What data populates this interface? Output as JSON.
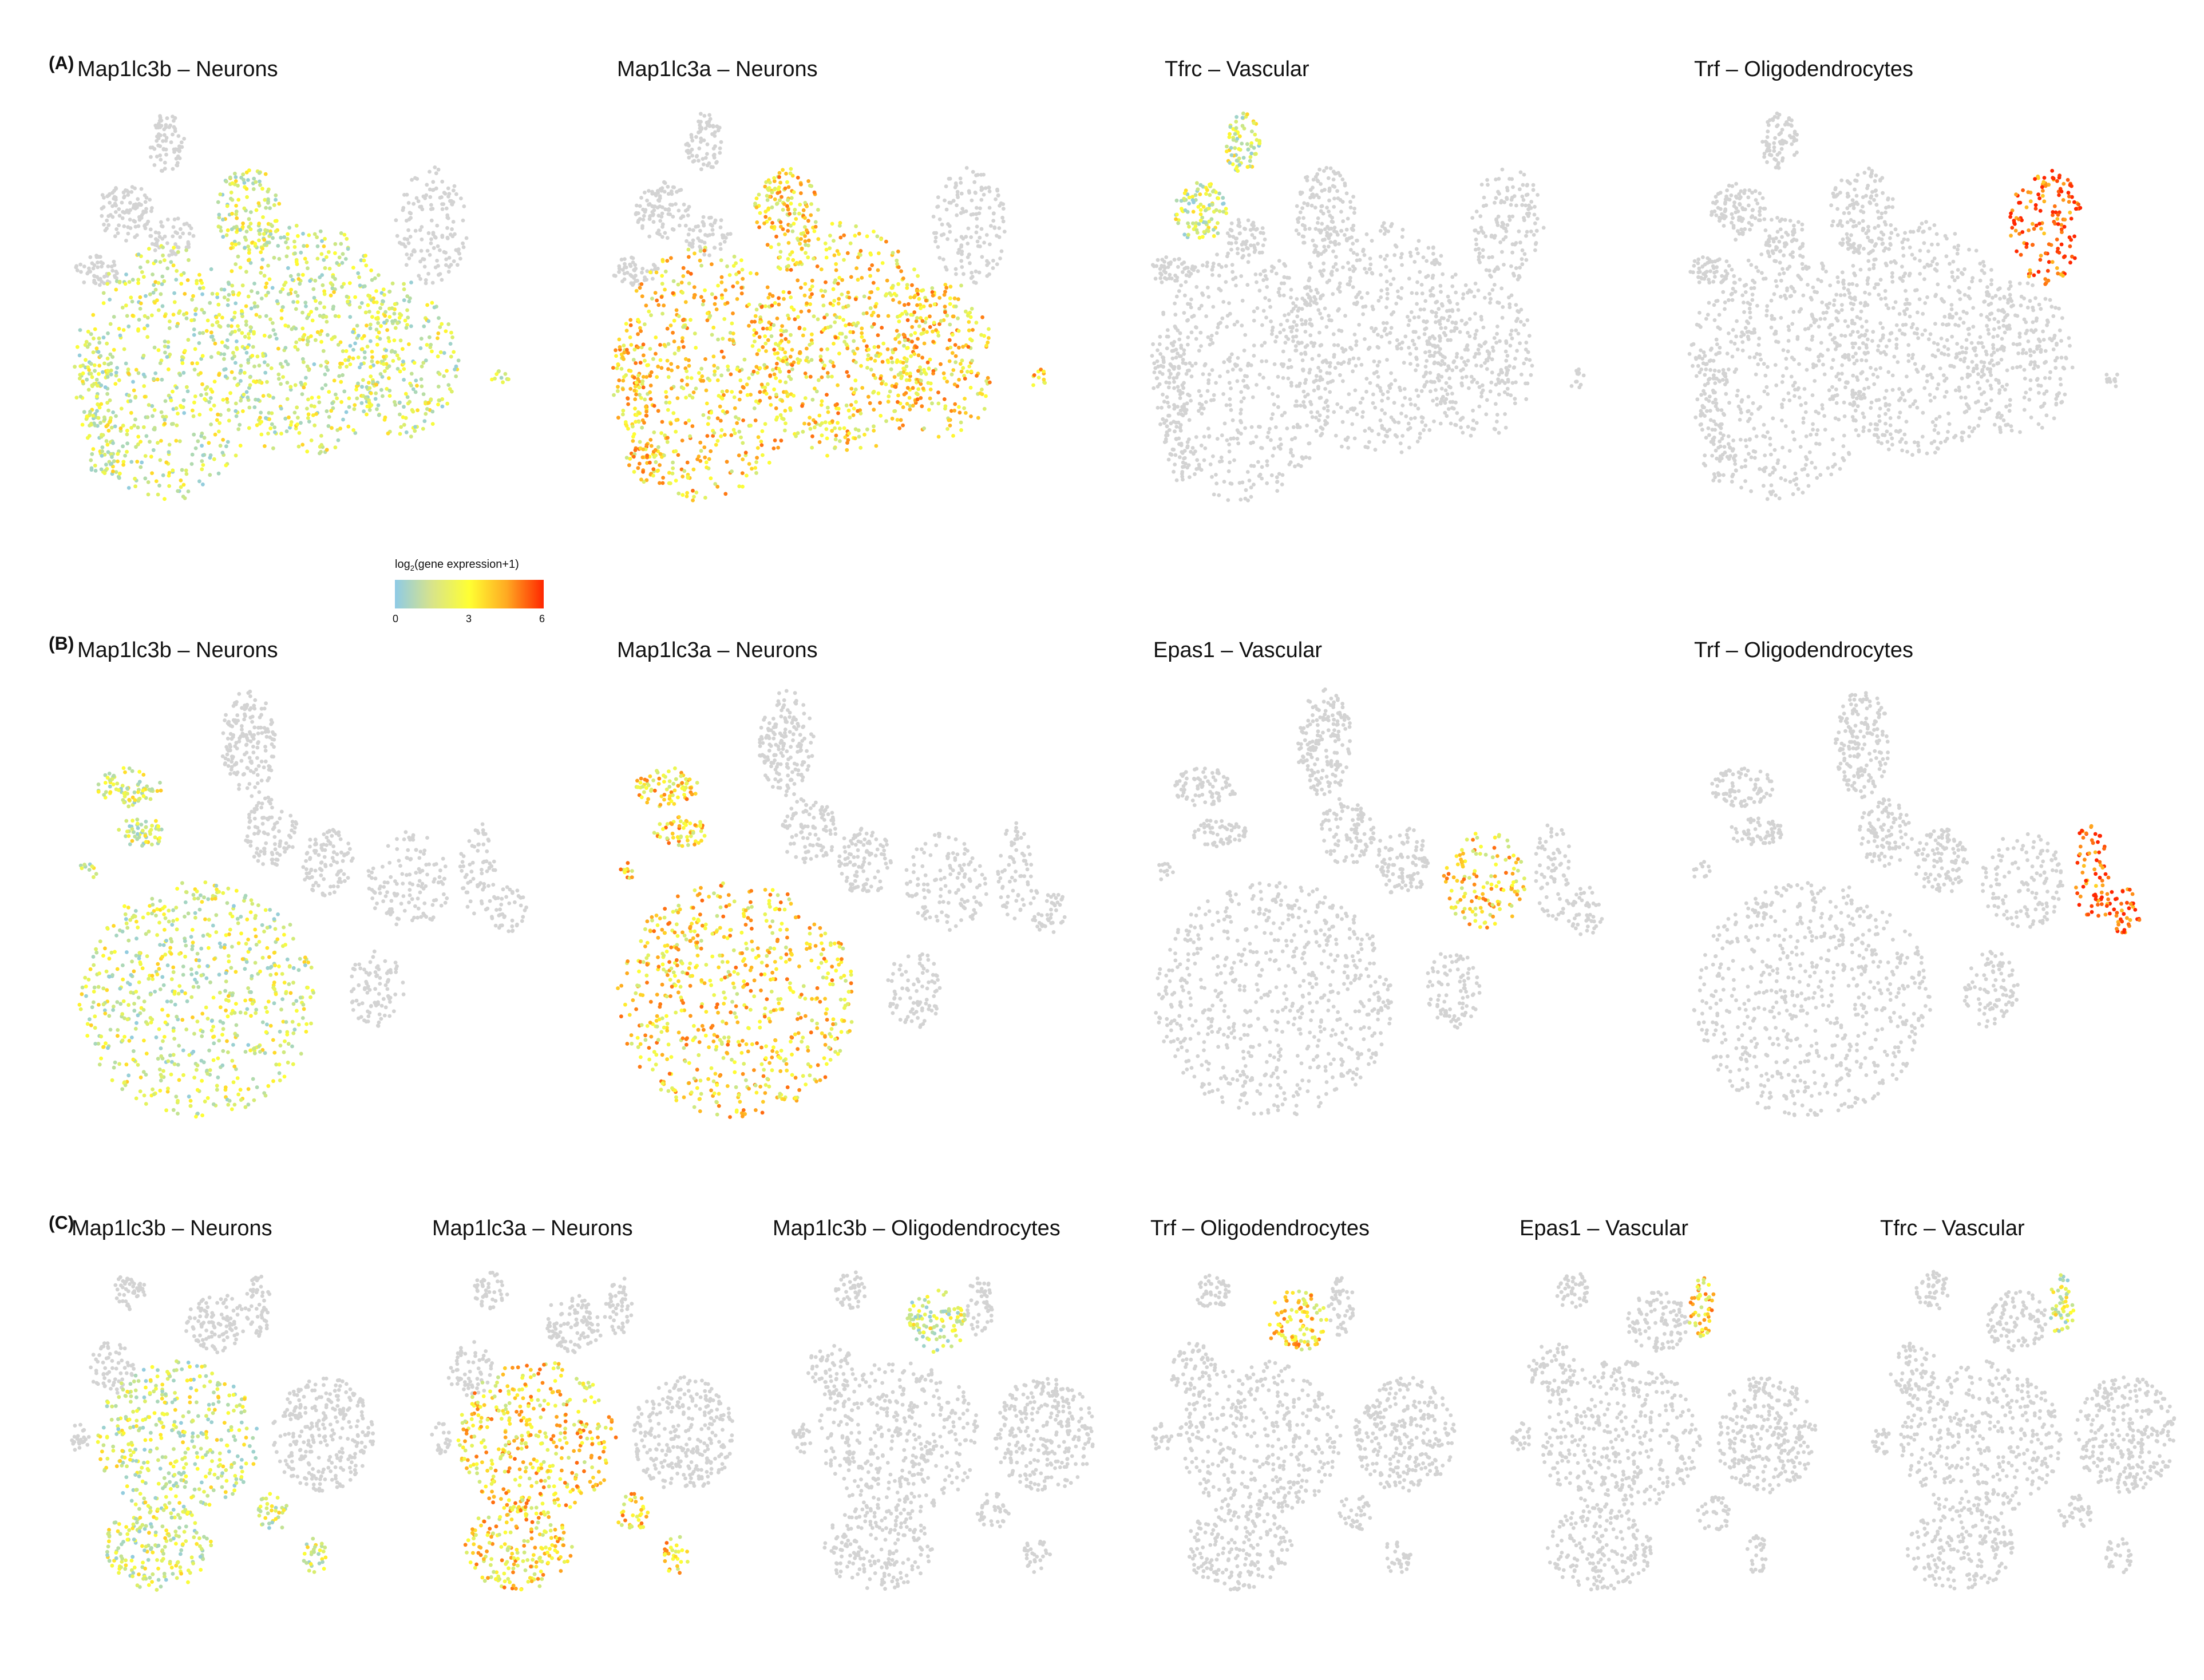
{
  "figure": {
    "panels": [
      {
        "letter": "(A)",
        "plots": [
          {
            "title": "Map1lc3b – Neurons",
            "level": "low"
          },
          {
            "title": "Map1lc3a – Neurons",
            "level": "mid"
          },
          {
            "title": "Tfrc – Vascular",
            "level": "low"
          },
          {
            "title": "Trf – Oligodendrocytes",
            "level": "high"
          }
        ]
      },
      {
        "letter": "(B)",
        "plots": [
          {
            "title": "Map1lc3b – Neurons",
            "level": "low"
          },
          {
            "title": "Map1lc3a – Neurons",
            "level": "mid"
          },
          {
            "title": "Epas1 – Vascular",
            "level": "mid"
          },
          {
            "title": "Trf – Oligodendrocytes",
            "level": "high"
          }
        ]
      },
      {
        "letter": "(C)",
        "plots": [
          {
            "title": "Map1lc3b – Neurons",
            "level": "low"
          },
          {
            "title": "Map1lc3a – Neurons",
            "level": "mid"
          },
          {
            "title": "Map1lc3b – Oligodendrocytes",
            "level": "low"
          },
          {
            "title": "Trf – Oligodendrocytes",
            "level": "mid"
          },
          {
            "title": "Epas1 – Vascular",
            "level": "mid"
          },
          {
            "title": "Tfrc – Vascular",
            "level": "low"
          }
        ]
      }
    ],
    "legend": {
      "title_prefix": "log",
      "title_sub": "2",
      "title_suffix": "(gene expression+1)",
      "ticks": [
        "0",
        "3",
        "6"
      ],
      "colors": [
        "#8ecae6",
        "#ffff33",
        "#ff2600"
      ]
    },
    "background_cell_color": "#d3d3d3"
  }
}
